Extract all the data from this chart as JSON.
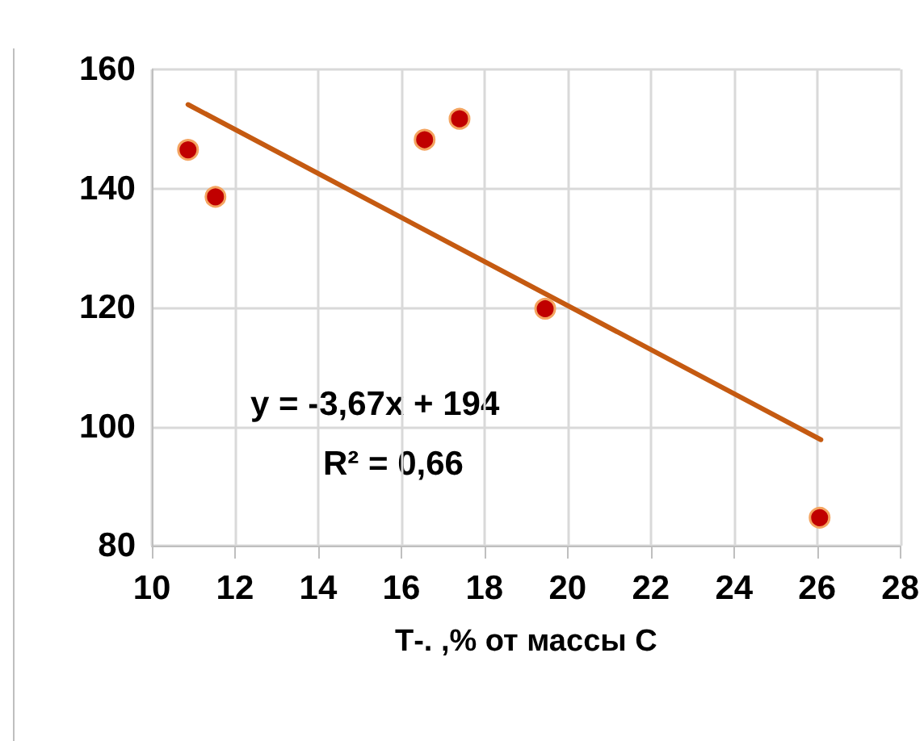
{
  "chart_data": {
    "type": "scatter",
    "xlabel": "Т-. ,% от массы С",
    "series": [
      {
        "color": "#c00000",
        "marker": "circle",
        "x": [
          10.87,
          11.53,
          16.56,
          17.4,
          19.46,
          26.06
        ],
        "values": [
          146.5,
          138.6,
          148.2,
          151.7,
          119.8,
          84.7
        ]
      },
      {
        "type": "line",
        "color": "#c55a11",
        "marker": "none",
        "line_style": "solid",
        "x": [
          10.87,
          26.09
        ],
        "values": [
          154.1,
          97.8
        ]
      }
    ],
    "annotations": [
      "y = -3,67x + 194",
      "R² = 0,66"
    ],
    "xlim": [
      10,
      28
    ],
    "xticks": [
      10,
      12,
      14,
      16,
      18,
      20,
      22,
      24,
      26,
      28
    ],
    "ylim": [
      80,
      160
    ],
    "yticks": [
      80,
      100,
      120,
      140,
      160
    ],
    "grid": true
  }
}
